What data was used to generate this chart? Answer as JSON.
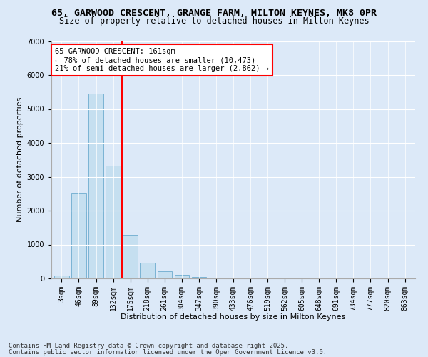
{
  "title_line1": "65, GARWOOD CRESCENT, GRANGE FARM, MILTON KEYNES, MK8 0PR",
  "title_line2": "Size of property relative to detached houses in Milton Keynes",
  "xlabel": "Distribution of detached houses by size in Milton Keynes",
  "ylabel": "Number of detached properties",
  "categories": [
    "3sqm",
    "46sqm",
    "89sqm",
    "132sqm",
    "175sqm",
    "218sqm",
    "261sqm",
    "304sqm",
    "347sqm",
    "390sqm",
    "433sqm",
    "476sqm",
    "519sqm",
    "562sqm",
    "605sqm",
    "648sqm",
    "691sqm",
    "734sqm",
    "777sqm",
    "820sqm",
    "863sqm"
  ],
  "values": [
    85,
    2500,
    5450,
    3330,
    1280,
    470,
    210,
    95,
    45,
    20,
    8,
    3,
    1,
    0,
    0,
    0,
    0,
    0,
    0,
    0,
    0
  ],
  "bar_color": "#c5dff0",
  "bar_edge_color": "#7ab3d4",
  "vline_index": 3.5,
  "vline_color": "red",
  "annotation_text": "65 GARWOOD CRESCENT: 161sqm\n← 78% of detached houses are smaller (10,473)\n21% of semi-detached houses are larger (2,862) →",
  "annotation_box_facecolor": "white",
  "annotation_box_edgecolor": "red",
  "ylim": [
    0,
    7000
  ],
  "yticks": [
    0,
    1000,
    2000,
    3000,
    4000,
    5000,
    6000,
    7000
  ],
  "bg_color": "#dce9f8",
  "plot_bg_color": "#dce9f8",
  "footer_line1": "Contains HM Land Registry data © Crown copyright and database right 2025.",
  "footer_line2": "Contains public sector information licensed under the Open Government Licence v3.0.",
  "title_fontsize": 9.5,
  "subtitle_fontsize": 8.5,
  "axis_label_fontsize": 8,
  "tick_fontsize": 7,
  "annotation_fontsize": 7.5,
  "footer_fontsize": 6.5
}
